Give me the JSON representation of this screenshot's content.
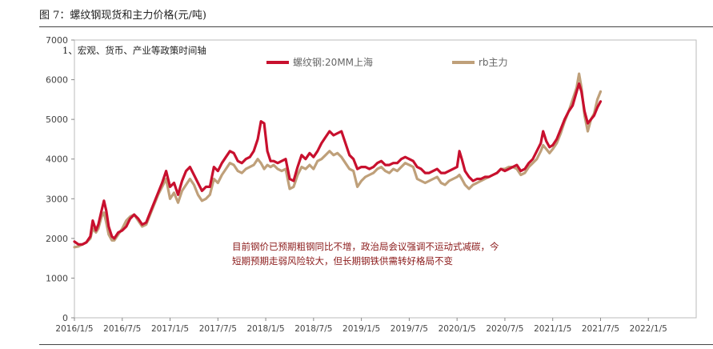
{
  "figure_title": "图 7：螺纹钢现货和主力价格(元/吨)",
  "chart_data": {
    "type": "line",
    "subtitle": "1、宏观、货币、产业等政策时间轴",
    "annotation_lines": [
      "目前钢价已预期粗钢同比不增，政治局会议强调不运动式减碳，今",
      "短期预期走弱风险较大，但长期钢铁供需转好格局不变"
    ],
    "xlabel": "",
    "ylabel": "",
    "ylim": [
      0,
      7000
    ],
    "y_ticks": [
      0,
      1000,
      2000,
      3000,
      4000,
      5000,
      6000,
      7000
    ],
    "x_range": [
      0,
      78
    ],
    "x_ticks": [
      {
        "label": "2016/1/5",
        "x": 0
      },
      {
        "label": "2016/7/5",
        "x": 6
      },
      {
        "label": "2017/1/5",
        "x": 12
      },
      {
        "label": "2017/7/5",
        "x": 18
      },
      {
        "label": "2018/1/5",
        "x": 24
      },
      {
        "label": "2018/7/5",
        "x": 30
      },
      {
        "label": "2019/1/5",
        "x": 36
      },
      {
        "label": "2019/7/5",
        "x": 42
      },
      {
        "label": "2020/1/5",
        "x": 48
      },
      {
        "label": "2020/7/5",
        "x": 54
      },
      {
        "label": "2021/1/5",
        "x": 60
      },
      {
        "label": "2021/7/5",
        "x": 66
      },
      {
        "label": "2022/1/5",
        "x": 72
      }
    ],
    "series": [
      {
        "name": "螺纹钢:20MM上海",
        "color": "#c8102e",
        "points": [
          [
            0,
            1920
          ],
          [
            0.5,
            1850
          ],
          [
            1,
            1850
          ],
          [
            1.5,
            1900
          ],
          [
            2,
            2050
          ],
          [
            2.3,
            2450
          ],
          [
            2.7,
            2200
          ],
          [
            3,
            2350
          ],
          [
            3.4,
            2700
          ],
          [
            3.7,
            2950
          ],
          [
            4,
            2700
          ],
          [
            4.3,
            2300
          ],
          [
            4.7,
            2050
          ],
          [
            5,
            2000
          ],
          [
            5.5,
            2150
          ],
          [
            6,
            2200
          ],
          [
            6.5,
            2300
          ],
          [
            7,
            2500
          ],
          [
            7.5,
            2600
          ],
          [
            8,
            2500
          ],
          [
            8.5,
            2350
          ],
          [
            9,
            2400
          ],
          [
            9.5,
            2650
          ],
          [
            10,
            2900
          ],
          [
            10.5,
            3150
          ],
          [
            11,
            3400
          ],
          [
            11.5,
            3700
          ],
          [
            12,
            3300
          ],
          [
            12.5,
            3400
          ],
          [
            13,
            3100
          ],
          [
            13.5,
            3450
          ],
          [
            14,
            3700
          ],
          [
            14.5,
            3800
          ],
          [
            15,
            3600
          ],
          [
            15.5,
            3400
          ],
          [
            16,
            3200
          ],
          [
            16.5,
            3300
          ],
          [
            17,
            3300
          ],
          [
            17.5,
            3800
          ],
          [
            18,
            3700
          ],
          [
            18.5,
            3900
          ],
          [
            19,
            4050
          ],
          [
            19.5,
            4200
          ],
          [
            20,
            4150
          ],
          [
            20.5,
            3950
          ],
          [
            21,
            3900
          ],
          [
            21.5,
            4000
          ],
          [
            22,
            4050
          ],
          [
            22.5,
            4200
          ],
          [
            23,
            4500
          ],
          [
            23.4,
            4950
          ],
          [
            23.8,
            4900
          ],
          [
            24.2,
            4200
          ],
          [
            24.6,
            3950
          ],
          [
            25,
            3950
          ],
          [
            25.5,
            3900
          ],
          [
            26,
            3950
          ],
          [
            26.5,
            4000
          ],
          [
            27,
            3500
          ],
          [
            27.5,
            3450
          ],
          [
            28,
            3800
          ],
          [
            28.5,
            4100
          ],
          [
            29,
            4000
          ],
          [
            29.5,
            4150
          ],
          [
            30,
            4050
          ],
          [
            30.5,
            4200
          ],
          [
            31,
            4400
          ],
          [
            31.5,
            4550
          ],
          [
            32,
            4700
          ],
          [
            32.5,
            4600
          ],
          [
            33,
            4650
          ],
          [
            33.5,
            4700
          ],
          [
            34,
            4400
          ],
          [
            34.5,
            4100
          ],
          [
            35,
            4000
          ],
          [
            35.5,
            3750
          ],
          [
            36,
            3800
          ],
          [
            36.5,
            3800
          ],
          [
            37,
            3750
          ],
          [
            37.5,
            3800
          ],
          [
            38,
            3900
          ],
          [
            38.5,
            3950
          ],
          [
            39,
            3850
          ],
          [
            39.5,
            3850
          ],
          [
            40,
            3900
          ],
          [
            40.5,
            3900
          ],
          [
            41,
            4000
          ],
          [
            41.5,
            4050
          ],
          [
            42,
            4000
          ],
          [
            42.5,
            3950
          ],
          [
            43,
            3800
          ],
          [
            43.5,
            3750
          ],
          [
            44,
            3650
          ],
          [
            44.5,
            3650
          ],
          [
            45,
            3700
          ],
          [
            45.5,
            3750
          ],
          [
            46,
            3650
          ],
          [
            46.5,
            3650
          ],
          [
            47,
            3700
          ],
          [
            47.5,
            3750
          ],
          [
            48,
            3800
          ],
          [
            48.3,
            4200
          ],
          [
            48.6,
            4000
          ],
          [
            49,
            3700
          ],
          [
            49.5,
            3550
          ],
          [
            50,
            3450
          ],
          [
            50.5,
            3500
          ],
          [
            51,
            3500
          ],
          [
            51.5,
            3550
          ],
          [
            52,
            3550
          ],
          [
            52.5,
            3600
          ],
          [
            53,
            3650
          ],
          [
            53.5,
            3750
          ],
          [
            54,
            3700
          ],
          [
            54.5,
            3750
          ],
          [
            55,
            3800
          ],
          [
            55.5,
            3850
          ],
          [
            56,
            3700
          ],
          [
            56.5,
            3750
          ],
          [
            57,
            3900
          ],
          [
            57.5,
            4000
          ],
          [
            58,
            4200
          ],
          [
            58.5,
            4400
          ],
          [
            58.8,
            4700
          ],
          [
            59.2,
            4450
          ],
          [
            59.6,
            4300
          ],
          [
            60,
            4350
          ],
          [
            60.5,
            4500
          ],
          [
            61,
            4750
          ],
          [
            61.5,
            5000
          ],
          [
            62,
            5200
          ],
          [
            62.5,
            5350
          ],
          [
            63,
            5700
          ],
          [
            63.3,
            5900
          ],
          [
            63.6,
            5700
          ],
          [
            64,
            5200
          ],
          [
            64.4,
            4900
          ],
          [
            64.8,
            5000
          ],
          [
            65.2,
            5100
          ],
          [
            65.6,
            5300
          ],
          [
            66,
            5450
          ]
        ]
      },
      {
        "name": "rb主力",
        "color": "#bfa07a",
        "points": [
          [
            0,
            1780
          ],
          [
            0.5,
            1800
          ],
          [
            1,
            1850
          ],
          [
            1.5,
            1900
          ],
          [
            2,
            2000
          ],
          [
            2.3,
            2250
          ],
          [
            2.7,
            2150
          ],
          [
            3,
            2250
          ],
          [
            3.4,
            2550
          ],
          [
            3.7,
            2650
          ],
          [
            4,
            2400
          ],
          [
            4.3,
            2100
          ],
          [
            4.7,
            1950
          ],
          [
            5,
            1950
          ],
          [
            5.5,
            2100
          ],
          [
            6,
            2250
          ],
          [
            6.5,
            2450
          ],
          [
            7,
            2550
          ],
          [
            7.5,
            2600
          ],
          [
            8,
            2450
          ],
          [
            8.5,
            2300
          ],
          [
            9,
            2350
          ],
          [
            9.5,
            2600
          ],
          [
            10,
            2850
          ],
          [
            10.5,
            3100
          ],
          [
            11,
            3300
          ],
          [
            11.5,
            3500
          ],
          [
            12,
            3000
          ],
          [
            12.5,
            3150
          ],
          [
            13,
            2900
          ],
          [
            13.5,
            3200
          ],
          [
            14,
            3350
          ],
          [
            14.5,
            3500
          ],
          [
            15,
            3350
          ],
          [
            15.5,
            3100
          ],
          [
            16,
            2950
          ],
          [
            16.5,
            3000
          ],
          [
            17,
            3100
          ],
          [
            17.5,
            3500
          ],
          [
            18,
            3400
          ],
          [
            18.5,
            3600
          ],
          [
            19,
            3750
          ],
          [
            19.5,
            3900
          ],
          [
            20,
            3850
          ],
          [
            20.5,
            3700
          ],
          [
            21,
            3650
          ],
          [
            21.5,
            3750
          ],
          [
            22,
            3800
          ],
          [
            22.5,
            3850
          ],
          [
            23,
            4000
          ],
          [
            23.4,
            3900
          ],
          [
            23.8,
            3750
          ],
          [
            24.2,
            3850
          ],
          [
            24.6,
            3800
          ],
          [
            25,
            3850
          ],
          [
            25.5,
            3750
          ],
          [
            26,
            3700
          ],
          [
            26.5,
            3750
          ],
          [
            27,
            3250
          ],
          [
            27.5,
            3300
          ],
          [
            28,
            3600
          ],
          [
            28.5,
            3800
          ],
          [
            29,
            3750
          ],
          [
            29.5,
            3850
          ],
          [
            30,
            3750
          ],
          [
            30.5,
            3950
          ],
          [
            31,
            4000
          ],
          [
            31.5,
            4100
          ],
          [
            32,
            4200
          ],
          [
            32.5,
            4100
          ],
          [
            33,
            4150
          ],
          [
            33.5,
            4050
          ],
          [
            34,
            3900
          ],
          [
            34.5,
            3750
          ],
          [
            35,
            3700
          ],
          [
            35.5,
            3300
          ],
          [
            36,
            3450
          ],
          [
            36.5,
            3550
          ],
          [
            37,
            3600
          ],
          [
            37.5,
            3650
          ],
          [
            38,
            3750
          ],
          [
            38.5,
            3800
          ],
          [
            39,
            3700
          ],
          [
            39.5,
            3650
          ],
          [
            40,
            3750
          ],
          [
            40.5,
            3700
          ],
          [
            41,
            3800
          ],
          [
            41.5,
            3900
          ],
          [
            42,
            3850
          ],
          [
            42.5,
            3800
          ],
          [
            43,
            3500
          ],
          [
            43.5,
            3450
          ],
          [
            44,
            3400
          ],
          [
            44.5,
            3450
          ],
          [
            45,
            3500
          ],
          [
            45.5,
            3550
          ],
          [
            46,
            3400
          ],
          [
            46.5,
            3350
          ],
          [
            47,
            3450
          ],
          [
            47.5,
            3500
          ],
          [
            48,
            3550
          ],
          [
            48.3,
            3600
          ],
          [
            48.6,
            3500
          ],
          [
            49,
            3350
          ],
          [
            49.5,
            3250
          ],
          [
            50,
            3350
          ],
          [
            50.5,
            3400
          ],
          [
            51,
            3450
          ],
          [
            51.5,
            3500
          ],
          [
            52,
            3550
          ],
          [
            52.5,
            3600
          ],
          [
            53,
            3650
          ],
          [
            53.5,
            3750
          ],
          [
            54,
            3750
          ],
          [
            54.5,
            3800
          ],
          [
            55,
            3800
          ],
          [
            55.5,
            3750
          ],
          [
            56,
            3600
          ],
          [
            56.5,
            3650
          ],
          [
            57,
            3800
          ],
          [
            57.5,
            3900
          ],
          [
            58,
            4000
          ],
          [
            58.5,
            4200
          ],
          [
            58.8,
            4350
          ],
          [
            59.2,
            4250
          ],
          [
            59.6,
            4150
          ],
          [
            60,
            4250
          ],
          [
            60.5,
            4400
          ],
          [
            61,
            4650
          ],
          [
            61.5,
            4950
          ],
          [
            62,
            5200
          ],
          [
            62.5,
            5500
          ],
          [
            63,
            5800
          ],
          [
            63.3,
            6150
          ],
          [
            63.6,
            5800
          ],
          [
            64,
            5100
          ],
          [
            64.4,
            4700
          ],
          [
            64.8,
            5000
          ],
          [
            65.2,
            5150
          ],
          [
            65.6,
            5500
          ],
          [
            66,
            5700
          ]
        ]
      }
    ]
  }
}
